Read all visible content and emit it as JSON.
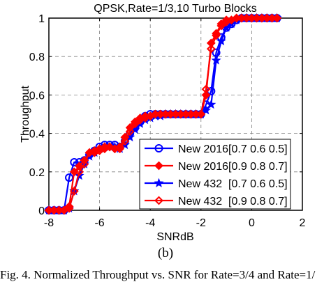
{
  "chart_data": {
    "type": "line",
    "title": "QPSK,Rate=1/3,10 Turbo Blocks",
    "xlabel": "SNRdB",
    "ylabel": "Throughput",
    "xlim": [
      -8,
      2
    ],
    "ylim": [
      0,
      1
    ],
    "xticks": [
      "-8",
      "-6",
      "-4",
      "-2",
      "0",
      "2"
    ],
    "yticks": [
      "0",
      "0.2",
      "0.4",
      "0.6",
      "0.8",
      "1"
    ],
    "grid": true,
    "legend_position": "bottom-right",
    "series": [
      {
        "name": "New 2016[0.7 0.6 0.5]",
        "color": "#0000ff",
        "marker": "circle",
        "x": [
          -8.0,
          -7.8,
          -7.6,
          -7.4,
          -7.2,
          -7.0,
          -6.8,
          -6.6,
          -6.4,
          -6.2,
          -6.0,
          -5.8,
          -5.6,
          -5.4,
          -5.2,
          -5.0,
          -4.8,
          -4.6,
          -4.4,
          -4.2,
          -4.0,
          -3.8,
          -3.6,
          -3.4,
          -3.2,
          -3.0,
          -2.8,
          -2.6,
          -2.4,
          -2.2,
          -2.0,
          -1.8,
          -1.6,
          -1.4,
          -1.2,
          -1.0,
          -0.8,
          -0.6,
          -0.4,
          -0.2,
          0.0,
          0.2,
          0.4,
          0.6,
          0.8,
          1.0
        ],
        "y": [
          0.0,
          0.0,
          0.0,
          0.0,
          0.17,
          0.25,
          0.25,
          0.26,
          0.29,
          0.31,
          0.33,
          0.34,
          0.34,
          0.34,
          0.33,
          0.36,
          0.4,
          0.43,
          0.46,
          0.49,
          0.5,
          0.5,
          0.5,
          0.5,
          0.5,
          0.5,
          0.5,
          0.5,
          0.5,
          0.5,
          0.5,
          0.55,
          0.62,
          0.82,
          0.9,
          0.95,
          0.97,
          0.99,
          1.0,
          1.0,
          1.0,
          1.0,
          1.0,
          1.0,
          1.0,
          1.0
        ]
      },
      {
        "name": "New 2016[0.9 0.8 0.7]",
        "color": "#ff0000",
        "marker": "diamond-filled",
        "x": [
          -8.0,
          -7.8,
          -7.6,
          -7.4,
          -7.2,
          -7.0,
          -6.8,
          -6.6,
          -6.4,
          -6.2,
          -6.0,
          -5.8,
          -5.6,
          -5.4,
          -5.2,
          -5.0,
          -4.8,
          -4.6,
          -4.4,
          -4.2,
          -4.0,
          -3.8,
          -3.6,
          -3.4,
          -3.2,
          -3.0,
          -2.8,
          -2.6,
          -2.4,
          -2.2,
          -2.0,
          -1.8,
          -1.6,
          -1.4,
          -1.2,
          -1.0,
          -0.8,
          -0.6,
          -0.4,
          -0.2,
          0.0,
          0.2,
          0.4,
          0.6,
          0.8,
          1.0
        ],
        "y": [
          0.0,
          0.0,
          0.0,
          0.0,
          0.02,
          0.2,
          0.23,
          0.26,
          0.3,
          0.31,
          0.32,
          0.32,
          0.33,
          0.32,
          0.33,
          0.38,
          0.43,
          0.46,
          0.48,
          0.49,
          0.49,
          0.5,
          0.5,
          0.5,
          0.5,
          0.5,
          0.5,
          0.5,
          0.5,
          0.5,
          0.5,
          0.6,
          0.87,
          0.92,
          0.97,
          0.99,
          0.99,
          1.0,
          1.0,
          1.0,
          1.0,
          1.0,
          1.0,
          1.0,
          1.0,
          1.0
        ]
      },
      {
        "name": "New 432  [0.7 0.6 0.5]",
        "color": "#0000ff",
        "marker": "star",
        "x": [
          -8.0,
          -7.8,
          -7.6,
          -7.4,
          -7.2,
          -7.0,
          -6.8,
          -6.6,
          -6.4,
          -6.2,
          -6.0,
          -5.8,
          -5.6,
          -5.4,
          -5.2,
          -5.0,
          -4.8,
          -4.6,
          -4.4,
          -4.2,
          -4.0,
          -3.8,
          -3.6,
          -3.4,
          -3.2,
          -3.0,
          -2.8,
          -2.6,
          -2.4,
          -2.2,
          -2.0,
          -1.8,
          -1.6,
          -1.4,
          -1.2,
          -1.0,
          -0.8,
          -0.6,
          -0.4,
          -0.2,
          0.0,
          0.2,
          0.4,
          0.6,
          0.8,
          1.0
        ],
        "y": [
          0.0,
          0.0,
          0.0,
          0.0,
          0.01,
          0.1,
          0.18,
          0.24,
          0.28,
          0.3,
          0.32,
          0.33,
          0.33,
          0.33,
          0.32,
          0.34,
          0.38,
          0.42,
          0.45,
          0.47,
          0.48,
          0.49,
          0.49,
          0.5,
          0.5,
          0.5,
          0.5,
          0.5,
          0.5,
          0.5,
          0.5,
          0.52,
          0.55,
          0.78,
          0.88,
          0.95,
          0.97,
          0.99,
          1.0,
          1.0,
          1.0,
          1.0,
          1.0,
          1.0,
          1.0,
          1.0
        ]
      },
      {
        "name": "New 432  [0.9 0.8 0.7]",
        "color": "#ff0000",
        "marker": "diamond-open",
        "x": [
          -8.0,
          -7.8,
          -7.6,
          -7.4,
          -7.2,
          -7.0,
          -6.8,
          -6.6,
          -6.4,
          -6.2,
          -6.0,
          -5.8,
          -5.6,
          -5.4,
          -5.2,
          -5.0,
          -4.8,
          -4.6,
          -4.4,
          -4.2,
          -4.0,
          -3.8,
          -3.6,
          -3.4,
          -3.2,
          -3.0,
          -2.8,
          -2.6,
          -2.4,
          -2.2,
          -2.0,
          -1.8,
          -1.6,
          -1.4,
          -1.2,
          -1.0,
          -0.8,
          -0.6,
          -0.4,
          -0.2,
          0.0,
          0.2,
          0.4,
          0.6,
          0.8,
          1.0
        ],
        "y": [
          0.0,
          0.0,
          0.0,
          0.0,
          0.01,
          0.1,
          0.2,
          0.24,
          0.3,
          0.3,
          0.31,
          0.33,
          0.33,
          0.32,
          0.32,
          0.36,
          0.41,
          0.45,
          0.47,
          0.48,
          0.49,
          0.5,
          0.5,
          0.5,
          0.5,
          0.5,
          0.5,
          0.5,
          0.5,
          0.5,
          0.5,
          0.63,
          0.84,
          0.91,
          0.96,
          0.98,
          0.99,
          1.0,
          1.0,
          1.0,
          1.0,
          1.0,
          1.0,
          1.0,
          1.0,
          1.0
        ]
      }
    ]
  },
  "figure": {
    "panel_label": "(b)",
    "caption": "Fig. 4.  Normalized Throughput vs. SNR for Rate=3/4 and Rate=1/"
  }
}
